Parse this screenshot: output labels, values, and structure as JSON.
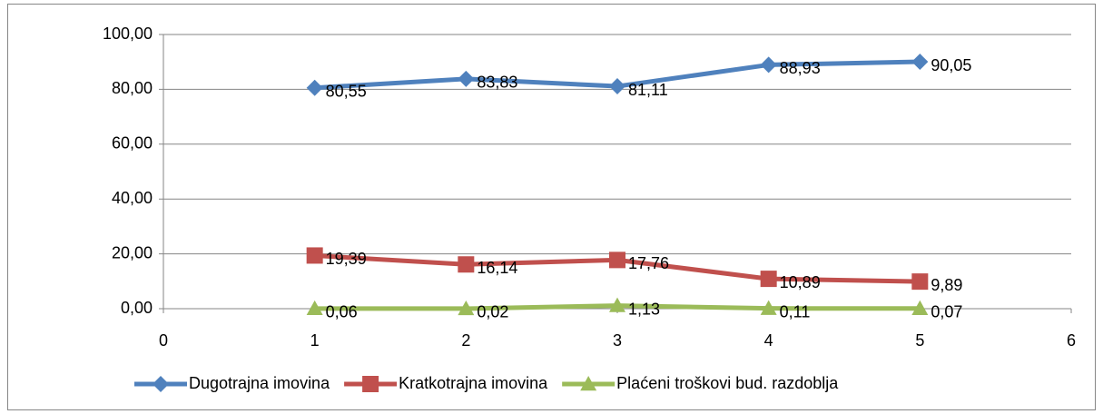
{
  "chart_data": {
    "type": "line",
    "x": [
      1,
      2,
      3,
      4,
      5
    ],
    "xlim": [
      0,
      6
    ],
    "xticks": [
      0,
      1,
      2,
      3,
      4,
      5,
      6
    ],
    "ylim": [
      0,
      100
    ],
    "yticks": [
      {
        "value": 0,
        "label": "0,00"
      },
      {
        "value": 20,
        "label": "20,00"
      },
      {
        "value": 40,
        "label": "40,00"
      },
      {
        "value": 60,
        "label": "60,00"
      },
      {
        "value": 80,
        "label": "80,00"
      },
      {
        "value": 100,
        "label": "100,00"
      }
    ],
    "grid": true,
    "legend": "bottom",
    "series": [
      {
        "name": "Dugotrajna imovina",
        "color": "#4f81bd",
        "marker": "diamond",
        "values": [
          80.55,
          83.83,
          81.11,
          88.93,
          90.05
        ],
        "value_labels": [
          "80,55",
          "83,83",
          "81,11",
          "88,93",
          "90,05"
        ]
      },
      {
        "name": "Kratkotrajna imovina",
        "color": "#c0504d",
        "marker": "square",
        "values": [
          19.39,
          16.14,
          17.76,
          10.89,
          9.89
        ],
        "value_labels": [
          "19,39",
          "16,14",
          "17,76",
          "10,89",
          "9,89"
        ]
      },
      {
        "name": "Plaćeni troškovi bud. razdoblja",
        "color": "#9bbb59",
        "marker": "triangle",
        "values": [
          0.06,
          0.02,
          1.13,
          0.11,
          0.07
        ],
        "value_labels": [
          "0,06",
          "0,02",
          "1,13",
          "0,11",
          "0,07"
        ]
      }
    ]
  }
}
